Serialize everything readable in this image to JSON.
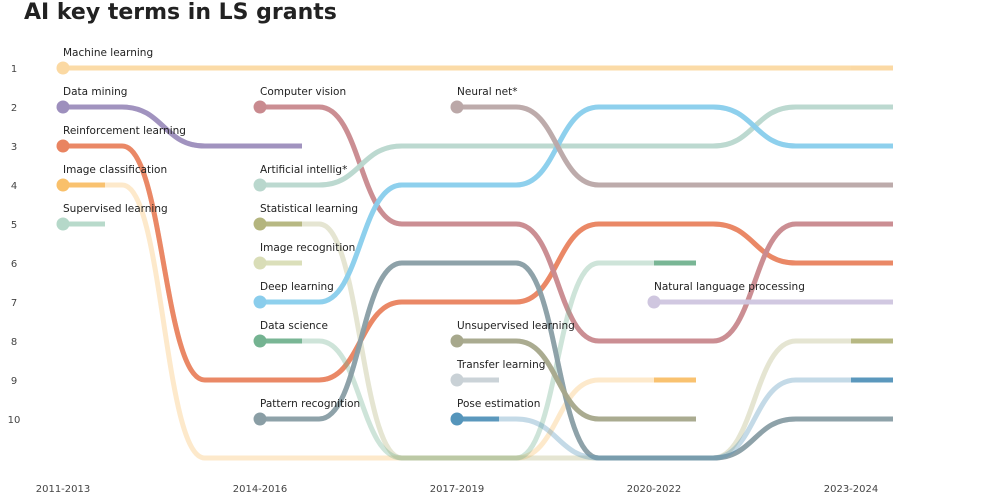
{
  "chart_data": {
    "type": "bump",
    "title": "AI key terms in LS grants",
    "periods": [
      "2011-2013",
      "2014-2016",
      "2017-2019",
      "2020-2022",
      "2023-2024"
    ],
    "rank_ticks": [
      "1",
      "2",
      "3",
      "4",
      "5",
      "6",
      "7",
      "8",
      "9",
      "10"
    ],
    "off_chart_rank": 11,
    "series": [
      {
        "name": "Machine learning",
        "color": "#fbd9a3",
        "ranks": [
          1,
          1,
          1,
          1,
          1
        ]
      },
      {
        "name": "Data mining",
        "color": "#9d8fbd",
        "ranks": [
          2,
          3,
          null,
          null,
          null
        ]
      },
      {
        "name": "Reinforcement learning",
        "color": "#e98461",
        "ranks": [
          3,
          9,
          7,
          5,
          6
        ]
      },
      {
        "name": "Image classification",
        "color": "#f9c06a",
        "ranks": [
          4,
          11,
          11,
          9,
          null
        ]
      },
      {
        "name": "Supervised learning",
        "color": "#b5d8c9",
        "ranks": [
          5,
          null,
          null,
          null,
          null
        ]
      },
      {
        "name": "Computer vision",
        "color": "#c98a8f",
        "ranks": [
          null,
          2,
          5,
          8,
          5
        ]
      },
      {
        "name": "Artificial intellig*",
        "color": "#b9d7cd",
        "ranks": [
          null,
          4,
          3,
          3,
          2
        ]
      },
      {
        "name": "Statistical learning",
        "color": "#b4b57e",
        "ranks": [
          null,
          5,
          11,
          11,
          8
        ]
      },
      {
        "name": "Image recognition",
        "color": "#d9ddb7",
        "ranks": [
          null,
          6,
          null,
          null,
          null
        ]
      },
      {
        "name": "Deep learning",
        "color": "#8acdec",
        "ranks": [
          null,
          7,
          4,
          2,
          3
        ]
      },
      {
        "name": "Data science",
        "color": "#74b391",
        "ranks": [
          null,
          8,
          11,
          6,
          null
        ]
      },
      {
        "name": "Pattern recognition",
        "color": "#8a9ea5",
        "ranks": [
          null,
          10,
          6,
          11,
          10
        ]
      },
      {
        "name": "Neural net*",
        "color": "#bba8a8",
        "ranks": [
          null,
          null,
          2,
          4,
          4
        ]
      },
      {
        "name": "Unsupervised learning",
        "color": "#a7a88c",
        "ranks": [
          null,
          null,
          8,
          10,
          null
        ]
      },
      {
        "name": "Transfer learning",
        "color": "#c9d1d6",
        "ranks": [
          null,
          null,
          9,
          null,
          null
        ]
      },
      {
        "name": "Pose estimation",
        "color": "#5595bb",
        "ranks": [
          null,
          null,
          10,
          11,
          9
        ]
      },
      {
        "name": "Natural language processing",
        "color": "#cfc6df",
        "ranks": [
          null,
          null,
          null,
          7,
          7
        ]
      }
    ]
  }
}
